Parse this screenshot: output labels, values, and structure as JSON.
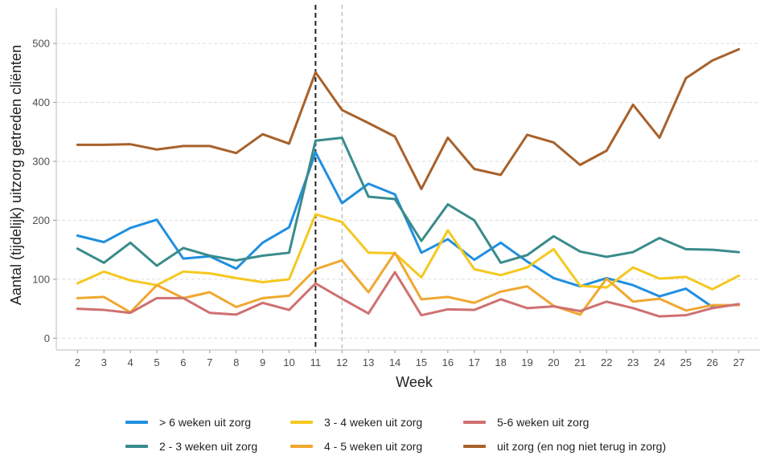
{
  "chart_data": {
    "type": "line",
    "xlabel": "Week",
    "ylabel": "Aantal (tijdelijk) uitzorg getreden cliënten",
    "ylim": [
      -20,
      560
    ],
    "yticks": [
      0,
      100,
      200,
      300,
      400,
      500
    ],
    "x": [
      2,
      3,
      4,
      5,
      6,
      7,
      8,
      9,
      10,
      11,
      12,
      13,
      14,
      15,
      16,
      17,
      18,
      19,
      20,
      21,
      22,
      23,
      24,
      25,
      26,
      27
    ],
    "vlines": [
      {
        "x": 11,
        "style": "dashed",
        "color": "#222222"
      },
      {
        "x": 12,
        "style": "dashed",
        "color": "#aaaaaa"
      }
    ],
    "grid": true,
    "legend_position": "bottom",
    "series": [
      {
        "name": "> 6 weken uit zorg",
        "color": "#1f8fe0",
        "values": [
          174,
          163,
          187,
          201,
          135,
          139,
          118,
          162,
          188,
          315,
          229,
          262,
          244,
          145,
          168,
          133,
          162,
          130,
          102,
          88,
          102,
          90,
          71,
          84,
          53,
          57
        ]
      },
      {
        "name": "2 - 3 weken uit zorg",
        "color": "#3a8b8b",
        "values": [
          152,
          128,
          162,
          123,
          153,
          140,
          132,
          140,
          145,
          335,
          340,
          240,
          236,
          165,
          227,
          200,
          128,
          141,
          173,
          147,
          138,
          146,
          170,
          151,
          150,
          146
        ]
      },
      {
        "name": "3 - 4 weken uit zorg",
        "color": "#f5c81f",
        "values": [
          93,
          113,
          98,
          90,
          113,
          110,
          102,
          95,
          100,
          210,
          197,
          145,
          144,
          103,
          183,
          117,
          107,
          120,
          151,
          89,
          86,
          120,
          101,
          104,
          83,
          106
        ]
      },
      {
        "name": "4 - 5 weken uit zorg",
        "color": "#f0a830",
        "values": [
          68,
          70,
          44,
          90,
          68,
          78,
          53,
          68,
          72,
          117,
          132,
          78,
          145,
          66,
          70,
          60,
          79,
          88,
          55,
          40,
          101,
          62,
          67,
          47,
          56,
          56
        ]
      },
      {
        "name": "5-6 weken uit zorg",
        "color": "#cf7070",
        "values": [
          50,
          48,
          43,
          68,
          68,
          43,
          40,
          60,
          48,
          93,
          67,
          42,
          112,
          39,
          49,
          48,
          66,
          51,
          54,
          46,
          62,
          51,
          37,
          39,
          51,
          58
        ]
      },
      {
        "name": "uit zorg (en nog niet terug in zorg)",
        "color": "#a8612a",
        "values": [
          328,
          328,
          329,
          320,
          326,
          326,
          314,
          346,
          330,
          451,
          387,
          365,
          342,
          253,
          340,
          287,
          277,
          345,
          332,
          294,
          318,
          396,
          340,
          441,
          471,
          490
        ]
      }
    ]
  }
}
